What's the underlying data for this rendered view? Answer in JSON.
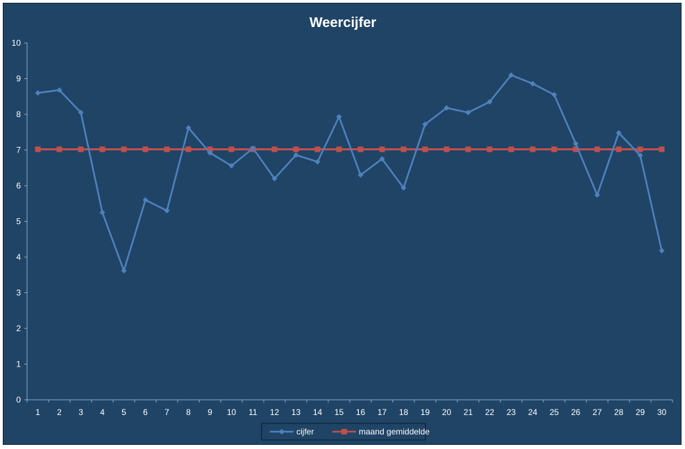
{
  "chart_data": {
    "type": "line",
    "title": "Weercijfer",
    "xlabel": "",
    "ylabel": "",
    "categories": [
      "1",
      "2",
      "3",
      "4",
      "5",
      "6",
      "7",
      "8",
      "9",
      "10",
      "11",
      "12",
      "13",
      "14",
      "15",
      "16",
      "17",
      "18",
      "19",
      "20",
      "21",
      "22",
      "23",
      "24",
      "25",
      "26",
      "27",
      "28",
      "29",
      "30"
    ],
    "ylim": [
      0,
      10
    ],
    "yticks": [
      "0",
      "1",
      "2",
      "3",
      "4",
      "5",
      "6",
      "7",
      "8",
      "9",
      "10"
    ],
    "grid": false,
    "legend_position": "bottom",
    "series": [
      {
        "name": "cijfer",
        "color": "#4f81bd",
        "marker": "diamond",
        "values": [
          8.6,
          8.68,
          8.05,
          5.25,
          3.62,
          5.6,
          5.3,
          7.62,
          6.92,
          6.56,
          7.05,
          6.2,
          6.86,
          6.67,
          7.93,
          6.3,
          6.75,
          5.94,
          7.72,
          8.18,
          8.05,
          8.35,
          9.1,
          8.86,
          8.55,
          7.18,
          5.74,
          7.48,
          6.85,
          4.18
        ]
      },
      {
        "name": "maand gemiddelde",
        "color": "#c0504d",
        "marker": "square",
        "values": [
          7.02,
          7.02,
          7.02,
          7.02,
          7.02,
          7.02,
          7.02,
          7.02,
          7.02,
          7.02,
          7.02,
          7.02,
          7.02,
          7.02,
          7.02,
          7.02,
          7.02,
          7.02,
          7.02,
          7.02,
          7.02,
          7.02,
          7.02,
          7.02,
          7.02,
          7.02,
          7.02,
          7.02,
          7.02,
          7.02
        ]
      }
    ]
  }
}
